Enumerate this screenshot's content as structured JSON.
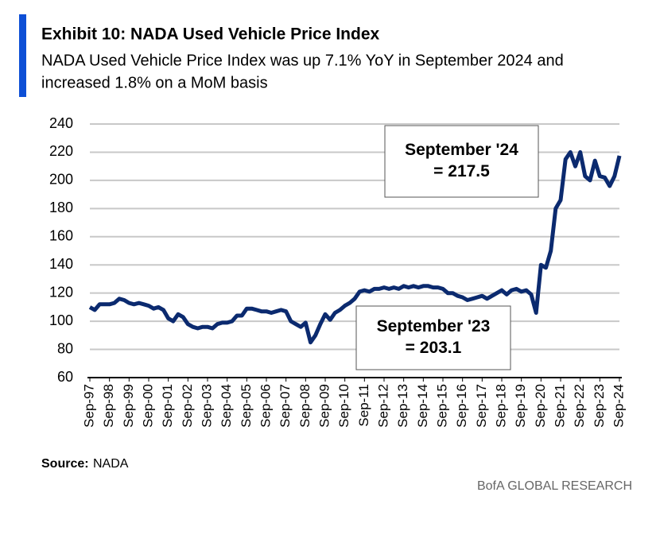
{
  "header": {
    "title": "Exhibit 10: NADA Used Vehicle Price Index",
    "subtitle_lines": [
      "NADA Used Vehicle Price Index was up 7.1% YoY in September 2024 and",
      "increased 1.8% on a MoM basis"
    ]
  },
  "chart_data": {
    "type": "line",
    "color": "#0b2a6f",
    "grid": true,
    "ylim": [
      60,
      240
    ],
    "yticks": [
      60,
      80,
      100,
      120,
      140,
      160,
      180,
      200,
      220,
      240
    ],
    "categories": [
      "Sep-97",
      null,
      null,
      null,
      "Sep-98",
      null,
      null,
      null,
      "Sep-99",
      null,
      null,
      null,
      "Sep-00",
      null,
      null,
      null,
      "Sep-01",
      null,
      null,
      null,
      "Sep-02",
      null,
      null,
      null,
      "Sep-03",
      null,
      null,
      null,
      "Sep-04",
      null,
      null,
      null,
      "Sep-05",
      null,
      null,
      null,
      "Sep-06",
      null,
      null,
      null,
      "Sep-07",
      null,
      null,
      null,
      "Sep-08",
      null,
      null,
      null,
      "Sep-09",
      null,
      null,
      null,
      "Sep-10",
      null,
      null,
      null,
      "Sep-11",
      null,
      null,
      null,
      "Sep-12",
      null,
      null,
      null,
      "Sep-13",
      null,
      null,
      null,
      "Sep-14",
      null,
      null,
      null,
      "Sep-15",
      null,
      null,
      null,
      "Sep-16",
      null,
      null,
      null,
      "Sep-17",
      null,
      null,
      null,
      "Sep-18",
      null,
      null,
      null,
      "Sep-19",
      null,
      null,
      null,
      "Sep-20",
      null,
      null,
      null,
      "Sep-21",
      null,
      null,
      null,
      "Sep-22",
      null,
      null,
      null,
      "Sep-23",
      null,
      null,
      null,
      "Sep-24"
    ],
    "values": [
      110,
      108,
      112,
      112,
      112,
      113,
      116,
      115,
      113,
      112,
      113,
      112,
      111,
      109,
      110,
      108,
      102,
      100,
      105,
      103,
      98,
      96,
      95,
      96,
      96,
      95,
      98,
      99,
      99,
      100,
      104,
      104,
      109,
      109,
      108,
      107,
      107,
      106,
      107,
      108,
      107,
      100,
      98,
      96,
      99,
      85,
      90,
      98,
      105,
      101,
      106,
      108,
      111,
      113,
      116,
      121,
      122,
      121,
      123,
      123,
      124,
      123,
      124,
      123,
      125,
      124,
      125,
      124,
      125,
      125,
      124,
      124,
      123,
      120,
      120,
      118,
      117,
      115,
      116,
      117,
      118,
      116,
      118,
      120,
      122,
      119,
      122,
      123,
      121,
      122,
      119,
      106,
      140,
      138,
      150,
      180,
      186,
      215,
      220,
      210,
      220,
      203,
      200,
      214,
      203,
      202,
      196,
      203,
      217.5
    ],
    "annotations": [
      {
        "lines": [
          "September '24",
          "= 217.5"
        ]
      },
      {
        "lines": [
          "September '23",
          "= 203.1"
        ]
      }
    ]
  },
  "footer": {
    "source_label": "Source:",
    "source": "NADA",
    "brand": "BofA GLOBAL RESEARCH"
  }
}
